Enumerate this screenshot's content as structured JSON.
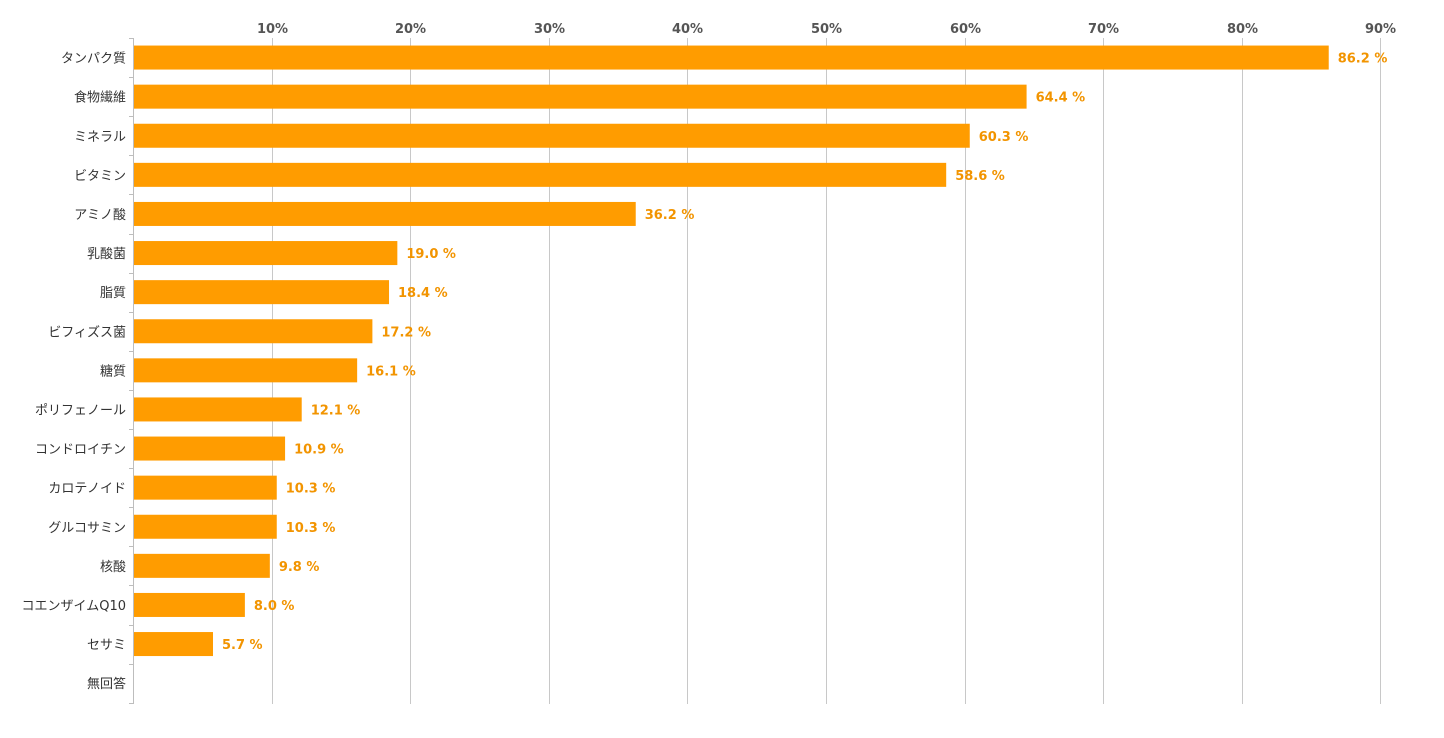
{
  "chart_data": {
    "type": "bar",
    "orientation": "horizontal",
    "title": "",
    "xlabel": "",
    "ylabel": "",
    "xlim": [
      0,
      90
    ],
    "x_ticks": [
      10,
      20,
      30,
      40,
      50,
      60,
      70,
      80,
      90
    ],
    "x_tick_labels": [
      "10%",
      "20%",
      "30%",
      "40%",
      "50%",
      "60%",
      "70%",
      "80%",
      "90%"
    ],
    "x_axis_position": "top",
    "grid": true,
    "legend": "none",
    "color": "#ff9c00",
    "label_color": "#f29400",
    "categories": [
      "タンパク質",
      "食物繊維",
      "ミネラル",
      "ビタミン",
      "アミノ酸",
      "乳酸菌",
      "脂質",
      "ビフィズス菌",
      "糖質",
      "ポリフェノール",
      "コンドロイチン",
      "カロテノイド",
      "グルコサミン",
      "核酸",
      "コエンザイムQ10",
      "セサミ",
      "無回答"
    ],
    "values": [
      86.2,
      64.4,
      60.3,
      58.6,
      36.2,
      19.0,
      18.4,
      17.2,
      16.1,
      12.1,
      10.9,
      10.3,
      10.3,
      9.8,
      8.0,
      5.7,
      null
    ],
    "value_labels": [
      "86.2 %",
      "64.4 %",
      "60.3 %",
      "58.6 %",
      "36.2 %",
      "19.0 %",
      "18.4 %",
      "17.2 %",
      "16.1 %",
      "12.1 %",
      "10.9 %",
      "10.3 %",
      "10.3 %",
      "9.8 %",
      "8.0 %",
      "5.7 %",
      ""
    ]
  }
}
